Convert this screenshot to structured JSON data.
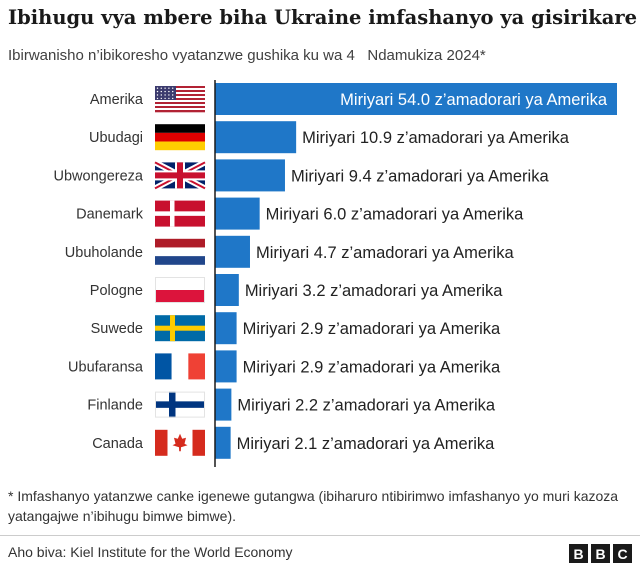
{
  "header": {
    "title": "Ibihugu vya mbere biha Ukraine imfashanyo ya gisirikare",
    "subtitle": "Ibirwanisho n’ibikoresho vyatanzwe gushika ku wa 4   Ndamukiza 2024*"
  },
  "chart_data": {
    "type": "bar",
    "orientation": "horizontal",
    "categories": [
      "Amerika",
      "Ubudagi",
      "Ubwongereza",
      "Danemark",
      "Ubuholande",
      "Pologne",
      "Suwede",
      "Ubufaransa",
      "Finlande",
      "Canada"
    ],
    "values": [
      54.0,
      10.9,
      9.4,
      6.0,
      4.7,
      3.2,
      2.9,
      2.9,
      2.2,
      2.1
    ],
    "data_labels": [
      "Miriyari 54.0 z’amadorari ya Amerika",
      "Miriyari 10.9 z’amadorari ya Amerika",
      "Miriyari 9.4 z’amadorari ya Amerika",
      "Miriyari 6.0 z’amadorari ya Amerika",
      "Miriyari 4.7 z’amadorari ya Amerika",
      "Miriyari 3.2 z’amadorari ya Amerika",
      "Miriyari 2.9 z’amadorari ya Amerika",
      "Miriyari 2.9 z’amadorari ya Amerika",
      "Miriyari 2.2 z’amadorari ya Amerika",
      "Miriyari 2.1 z’amadorari ya Amerika"
    ],
    "flags": [
      "usa-flag",
      "germany-flag",
      "uk-flag",
      "denmark-flag",
      "netherlands-flag",
      "poland-flag",
      "sweden-flag",
      "france-flag",
      "finland-flag",
      "canada-flag"
    ],
    "bar_color": "#1f77c8",
    "grid": false,
    "legend": "none"
  },
  "footer": {
    "footnote": "* Imfashanyo yatanzwe canke igenewe gutangwa (ibiharuro ntibirimwo imfashanyo yo muri kazoza yatangajwe n’ibihugu bimwe bimwe).",
    "source": "Aho biva: Kiel Institute for the World Economy",
    "logo": [
      "B",
      "B",
      "C"
    ]
  }
}
